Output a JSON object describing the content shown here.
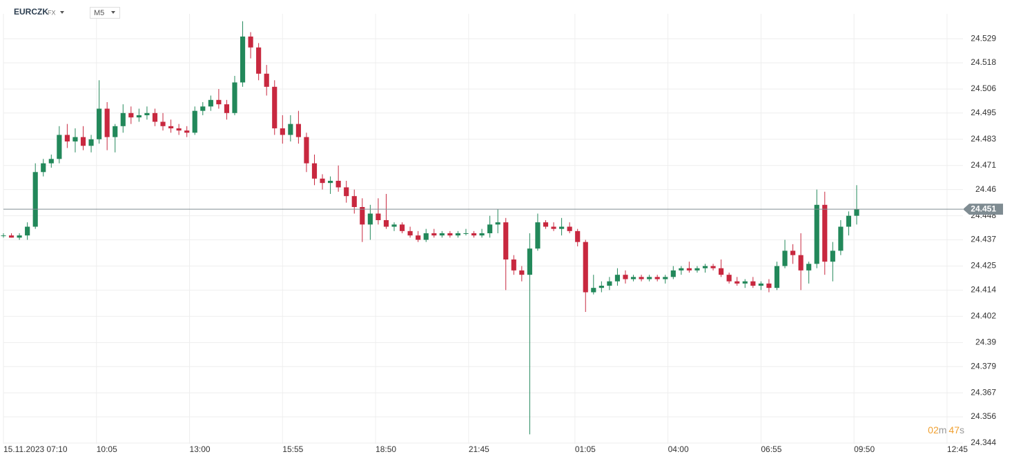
{
  "header": {
    "symbol": "EURCZK",
    "market": "FX",
    "timeframe": "M5"
  },
  "countdown": {
    "minutes": "02",
    "minutes_unit": "m",
    "seconds": "47",
    "seconds_unit": "s"
  },
  "chart_data": {
    "type": "candlestick",
    "x": [
      430,
      445,
      460,
      475,
      490,
      505,
      520,
      535,
      550,
      565,
      580,
      595,
      610,
      625,
      640,
      655,
      670,
      685,
      700,
      715,
      730,
      745,
      760,
      775,
      790,
      805,
      820,
      835,
      850,
      865,
      880,
      895,
      910,
      925,
      940,
      955,
      970,
      985,
      1000,
      1015,
      1030,
      1045,
      1060,
      1075,
      1090,
      1105,
      1120,
      1135,
      1150,
      1165,
      1180,
      1195,
      1210,
      1225,
      1240,
      1255,
      1270,
      1285,
      1300,
      1315,
      1330,
      1345,
      1360,
      1375,
      1390,
      1405,
      1420,
      1435,
      1450,
      1465,
      1480,
      1495,
      1510,
      1525,
      1540,
      1555,
      1570,
      1585,
      1600,
      1615,
      1630,
      1645,
      1660,
      1675,
      1690,
      1705,
      1720,
      1735,
      1750,
      1765,
      1780,
      1795,
      1810,
      1825,
      1840,
      1855,
      1870,
      1885,
      1900,
      1915,
      1930,
      1945,
      1960,
      1975,
      1990,
      2005,
      2020,
      2035
    ],
    "open": [
      24.439,
      24.439,
      24.438,
      24.439,
      24.443,
      24.468,
      24.472,
      24.474,
      24.485,
      24.482,
      24.484,
      24.48,
      24.483,
      24.497,
      24.484,
      24.489,
      24.495,
      24.493,
      24.494,
      24.495,
      24.491,
      24.489,
      24.488,
      24.487,
      24.486,
      24.496,
      24.498,
      24.501,
      24.499,
      24.495,
      24.509,
      24.53,
      24.525,
      24.513,
      24.507,
      24.488,
      24.485,
      24.49,
      24.484,
      24.472,
      24.465,
      24.463,
      24.464,
      24.461,
      24.457,
      24.452,
      24.444,
      24.449,
      24.446,
      24.443,
      24.444,
      24.441,
      24.439,
      24.437,
      24.44,
      24.439,
      24.44,
      24.439,
      24.44,
      24.44,
      24.439,
      24.44,
      24.444,
      24.445,
      24.428,
      24.423,
      24.421,
      24.433,
      24.445,
      24.443,
      24.442,
      24.443,
      24.441,
      24.436,
      24.413,
      24.415,
      24.416,
      24.418,
      24.421,
      24.419,
      24.42,
      24.419,
      24.42,
      24.419,
      24.42,
      24.423,
      24.424,
      24.423,
      24.424,
      24.425,
      24.424,
      24.421,
      24.418,
      24.417,
      24.418,
      24.416,
      24.417,
      24.415,
      24.425,
      24.432,
      24.43,
      24.423,
      24.426,
      24.453,
      24.427,
      24.432,
      24.443,
      24.448
    ],
    "high": [
      24.44,
      24.44,
      24.44,
      24.445,
      24.472,
      24.474,
      24.476,
      24.489,
      24.49,
      24.488,
      24.489,
      24.485,
      24.51,
      24.5,
      24.49,
      24.499,
      24.498,
      24.497,
      24.498,
      24.497,
      24.495,
      24.492,
      24.49,
      24.489,
      24.498,
      24.5,
      24.503,
      24.506,
      24.501,
      24.512,
      24.537,
      24.532,
      24.527,
      24.517,
      24.51,
      24.494,
      24.494,
      24.496,
      24.486,
      24.476,
      24.467,
      24.466,
      24.471,
      24.464,
      24.46,
      24.456,
      24.453,
      24.456,
      24.458,
      24.445,
      24.445,
      24.443,
      24.441,
      24.442,
      24.442,
      24.441,
      24.441,
      24.441,
      24.442,
      24.441,
      24.442,
      24.448,
      24.451,
      24.447,
      24.43,
      24.425,
      24.44,
      24.449,
      24.446,
      24.445,
      24.447,
      24.445,
      24.442,
      24.437,
      24.421,
      24.418,
      24.42,
      24.424,
      24.423,
      24.421,
      24.421,
      24.421,
      24.421,
      24.421,
      24.425,
      24.425,
      24.427,
      24.425,
      24.426,
      24.426,
      24.428,
      24.422,
      24.42,
      24.419,
      24.42,
      24.418,
      24.419,
      24.427,
      24.437,
      24.435,
      24.44,
      24.427,
      24.46,
      24.459,
      24.436,
      24.446,
      24.45,
      24.462
    ],
    "low": [
      24.438,
      24.438,
      24.437,
      24.437,
      24.442,
      24.466,
      24.47,
      24.472,
      24.479,
      24.477,
      24.478,
      24.477,
      24.481,
      24.478,
      24.477,
      24.486,
      24.49,
      24.491,
      24.492,
      24.489,
      24.487,
      24.486,
      24.485,
      24.484,
      24.485,
      24.494,
      24.496,
      24.497,
      24.492,
      24.494,
      24.507,
      24.52,
      24.51,
      24.503,
      24.485,
      24.481,
      24.482,
      24.481,
      24.468,
      24.462,
      24.46,
      24.458,
      24.459,
      24.454,
      24.449,
      24.436,
      24.437,
      24.444,
      24.442,
      24.441,
      24.44,
      24.438,
      24.436,
      24.436,
      24.438,
      24.438,
      24.438,
      24.438,
      24.439,
      24.438,
      24.438,
      24.438,
      24.44,
      24.414,
      24.421,
      24.418,
      24.348,
      24.432,
      24.442,
      24.441,
      24.439,
      24.44,
      24.434,
      24.404,
      24.412,
      24.413,
      24.414,
      24.416,
      24.417,
      24.418,
      24.418,
      24.418,
      24.418,
      24.417,
      24.419,
      24.421,
      24.422,
      24.422,
      24.422,
      24.423,
      24.42,
      24.417,
      24.416,
      24.415,
      24.415,
      24.414,
      24.413,
      24.414,
      24.424,
      24.426,
      24.414,
      24.417,
      24.424,
      24.421,
      24.418,
      24.43,
      24.439,
      24.444
    ],
    "close": [
      24.439,
      24.438,
      24.439,
      24.443,
      24.468,
      24.472,
      24.474,
      24.485,
      24.482,
      24.484,
      24.48,
      24.483,
      24.497,
      24.484,
      24.489,
      24.495,
      24.493,
      24.494,
      24.495,
      24.491,
      24.489,
      24.488,
      24.487,
      24.486,
      24.496,
      24.498,
      24.501,
      24.499,
      24.495,
      24.509,
      24.53,
      24.525,
      24.513,
      24.507,
      24.488,
      24.485,
      24.49,
      24.484,
      24.472,
      24.465,
      24.463,
      24.464,
      24.461,
      24.457,
      24.452,
      24.444,
      24.449,
      24.446,
      24.443,
      24.444,
      24.441,
      24.439,
      24.437,
      24.44,
      24.439,
      24.44,
      24.439,
      24.44,
      24.44,
      24.439,
      24.44,
      24.444,
      24.445,
      24.428,
      24.423,
      24.421,
      24.433,
      24.445,
      24.443,
      24.442,
      24.443,
      24.441,
      24.436,
      24.413,
      24.415,
      24.416,
      24.418,
      24.421,
      24.419,
      24.42,
      24.419,
      24.42,
      24.419,
      24.42,
      24.423,
      24.424,
      24.423,
      24.424,
      24.425,
      24.424,
      24.421,
      24.418,
      24.417,
      24.418,
      24.416,
      24.417,
      24.415,
      24.425,
      24.432,
      24.43,
      24.423,
      24.426,
      24.453,
      24.427,
      24.432,
      24.443,
      24.448,
      24.451
    ],
    "up_color": "#22885a",
    "down_color": "#c8283f",
    "xlim": [
      430,
      2235
    ],
    "xticks": [
      {
        "value": 430,
        "label": "15.11.2023  07:10"
      },
      {
        "value": 605,
        "label": "10:05"
      },
      {
        "value": 780,
        "label": "13:00"
      },
      {
        "value": 955,
        "label": "15:55"
      },
      {
        "value": 1130,
        "label": "18:50"
      },
      {
        "value": 1305,
        "label": "21:45"
      },
      {
        "value": 1505,
        "label": "01:05"
      },
      {
        "value": 1680,
        "label": "04:00"
      },
      {
        "value": 1855,
        "label": "06:55"
      },
      {
        "value": 2030,
        "label": "09:50"
      },
      {
        "value": 2205,
        "label": "12:45"
      }
    ],
    "ylim": [
      24.3437,
      24.5404
    ],
    "yticks": [
      24.529,
      24.518,
      24.506,
      24.495,
      24.483,
      24.471,
      24.46,
      24.448,
      24.437,
      24.425,
      24.414,
      24.402,
      24.39,
      24.379,
      24.367,
      24.356,
      24.344
    ],
    "grid": true,
    "last_price": 24.451,
    "last_price_color": "#7f8c92"
  }
}
